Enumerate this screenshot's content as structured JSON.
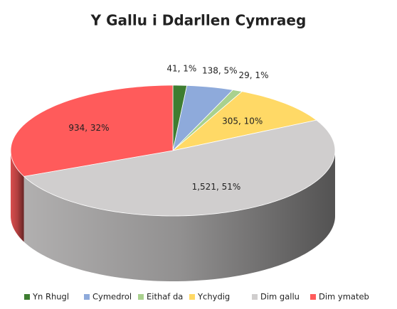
{
  "chart_data": {
    "type": "pie",
    "title": "Y Gallu i Ddarllen Cymraeg",
    "categories": [
      "Yn Rhugl",
      "Cymedrol",
      "Eithaf da",
      "Ychydig",
      "Dim gallu",
      "Dim ymateb"
    ],
    "values": [
      41,
      138,
      29,
      305,
      1521,
      934
    ],
    "value_labels": [
      "41, 1%",
      "138, 5%",
      "29, 1%",
      "305, 10%",
      "1,521, 51%",
      "934, 32%"
    ],
    "colors": [
      "#3e7d31",
      "#8eaadb",
      "#a9d18e",
      "#ffd966",
      "#d0cece",
      "#ff5b5b"
    ],
    "legend": "bottom"
  }
}
